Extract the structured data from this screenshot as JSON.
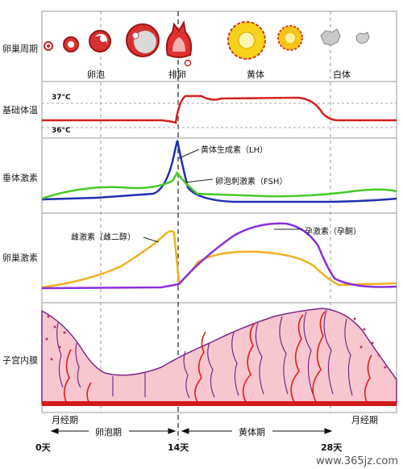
{
  "row_labels": {
    "ovarian_cycle": "卵巢周期",
    "body_temp": "基础体温",
    "pituitary": "垂体激素",
    "ovarian_hormone": "卵巢激素",
    "endometrium": "子宫内膜"
  },
  "phase_labels": {
    "follicle": "卵泡",
    "ovulation": "排卵",
    "corpus_luteum": "黄体",
    "corpus_albicans": "白体"
  },
  "temp_labels": {
    "high": "37°C",
    "low": "36°C"
  },
  "hormone_labels": {
    "lh": "黄体生成素（LH）",
    "fsh": "卵泡刺激素（FSH）",
    "estrogen": "雌激素（雌二醇）",
    "progesterone": "孕激素（孕酮）"
  },
  "period_labels": {
    "menses_left": "月经期",
    "menses_right": "月经期",
    "follicular": "卵泡期",
    "luteal": "黄体期"
  },
  "day_labels": {
    "d0": "0天",
    "d14": "14天",
    "d28": "28天"
  },
  "colors": {
    "temp": "#d42020",
    "lh": "#1f2fb0",
    "fsh": "#49c829",
    "estrogen": "#f0b020",
    "progesterone": "#8a2fd8",
    "endometrium_fill": "#f7c6cf",
    "vessel": "#e0201c",
    "gland": "#7a2a8a"
  },
  "watermark": "www.365jz.com"
}
